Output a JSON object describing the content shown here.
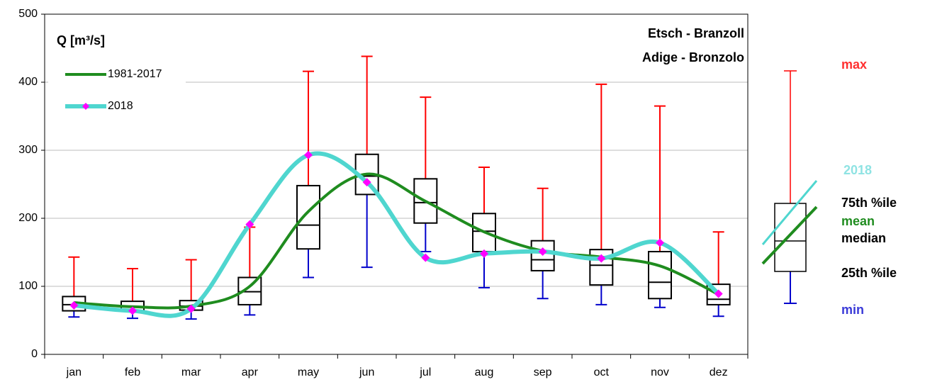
{
  "chart_data": {
    "type": "box",
    "title": "Q [m³/s]",
    "station_lines": [
      "Etsch - Branzoll",
      "Adige - Bronzolo"
    ],
    "categories": [
      "jan",
      "feb",
      "mar",
      "apr",
      "may",
      "jun",
      "jul",
      "aug",
      "sep",
      "oct",
      "nov",
      "dez"
    ],
    "boxes": {
      "min": [
        55,
        53,
        52,
        58,
        113,
        128,
        151,
        98,
        82,
        73,
        69,
        56
      ],
      "q1": [
        64,
        63,
        65,
        73,
        155,
        235,
        193,
        151,
        123,
        102,
        82,
        73
      ],
      "median": [
        73,
        70,
        71,
        92,
        190,
        262,
        223,
        181,
        139,
        131,
        106,
        81
      ],
      "q3": [
        85,
        78,
        79,
        113,
        248,
        294,
        258,
        207,
        167,
        154,
        151,
        103
      ],
      "max": [
        143,
        126,
        139,
        187,
        416,
        438,
        378,
        275,
        244,
        397,
        365,
        180
      ],
      "box_color": "#000000",
      "upper_whisker_color": "#ff0000",
      "lower_whisker_color": "#0000cc"
    },
    "series": [
      {
        "name": "1981-2017",
        "color": "#1f8c1f",
        "values": [
          76,
          70,
          71,
          100,
          210,
          265,
          225,
          180,
          152,
          143,
          130,
          88
        ]
      },
      {
        "name": "2018",
        "color": "#4fd6cf",
        "marker_color": "#ff00ff",
        "values": [
          72,
          64,
          67,
          191,
          293,
          253,
          142,
          148,
          151,
          141,
          164,
          89
        ]
      }
    ],
    "key_labels": [
      "max",
      "2018",
      "75th %ile",
      "mean",
      "median",
      "25th %ile",
      "min"
    ],
    "ylim": [
      0,
      500
    ],
    "yticks": [
      0,
      100,
      200,
      300,
      400,
      500
    ],
    "grid": true
  }
}
